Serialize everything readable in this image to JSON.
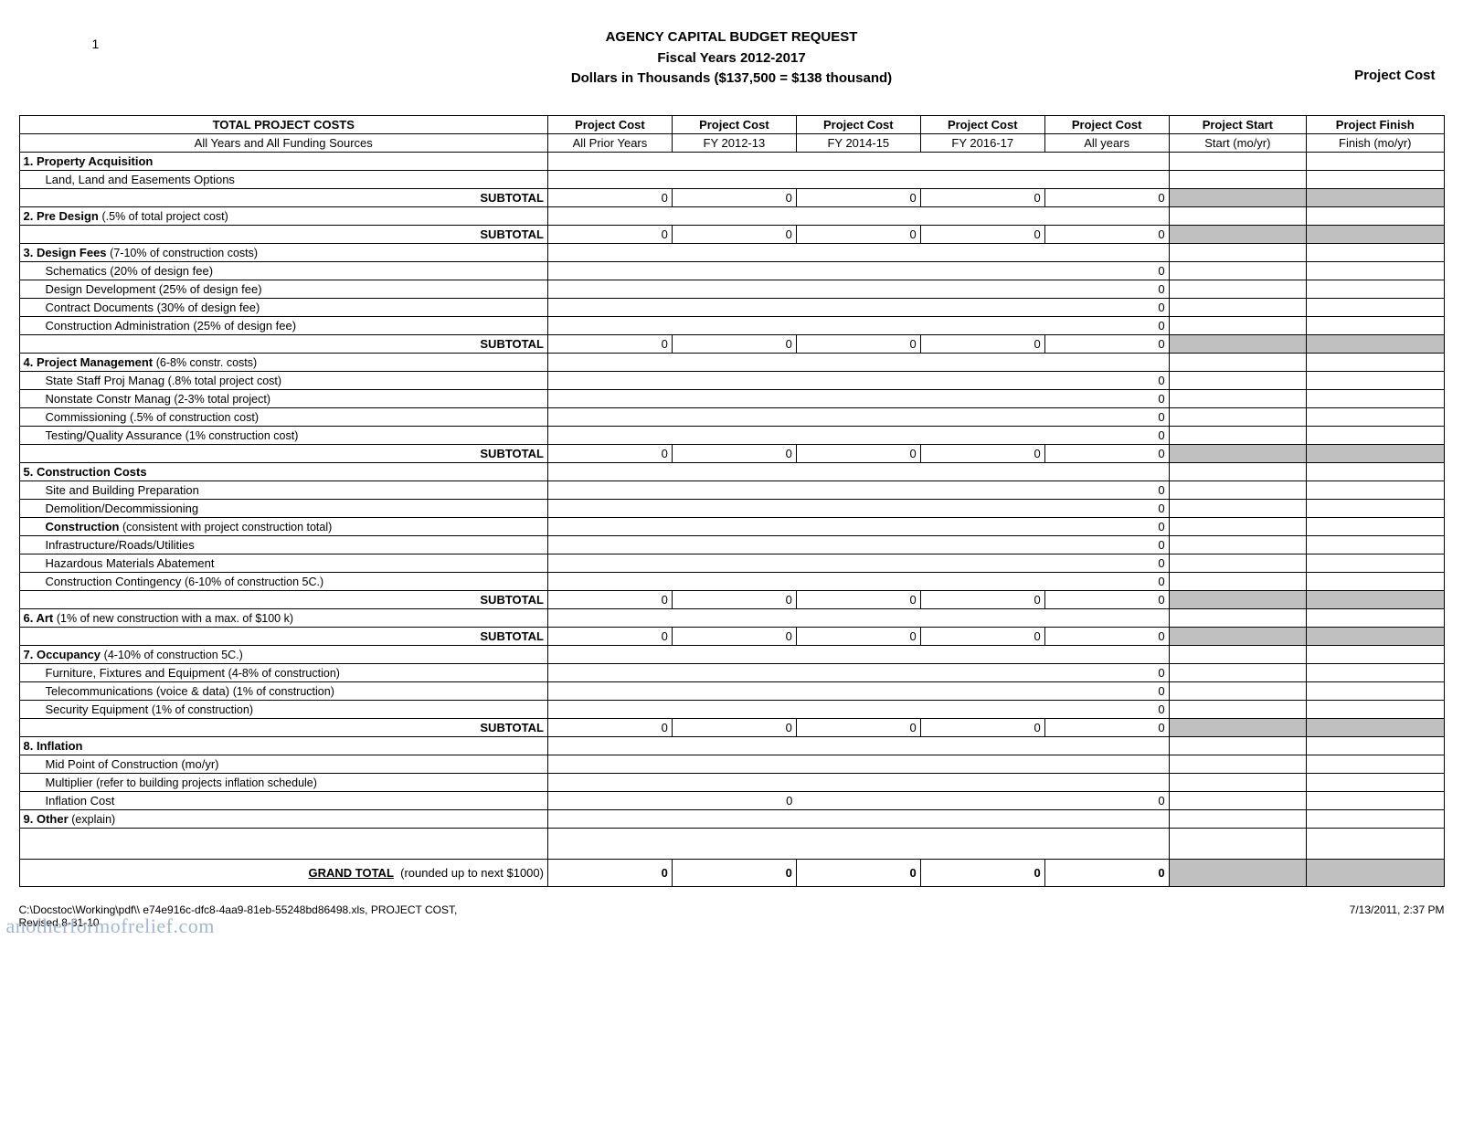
{
  "pageNumber": "1",
  "header": {
    "line1": "AGENCY CAPITAL BUDGET REQUEST",
    "line2": "Fiscal Years 2012-2017",
    "line3": "Dollars in Thousands ($137,500 = $138 thousand)"
  },
  "topRightLabel": "Project Cost",
  "columns": {
    "mainTitle": "TOTAL PROJECT COSTS",
    "mainSub": "All Years and All Funding Sources",
    "c1a": "Project Cost",
    "c1b": "All Prior Years",
    "c2a": "Project Cost",
    "c2b": "FY 2012-13",
    "c3a": "Project Cost",
    "c3b": "FY 2014-15",
    "c4a": "Project Cost",
    "c4b": "FY 2016-17",
    "c5a": "Project Cost",
    "c5b": "All years",
    "c6a": "Project Start",
    "c6b": "Start (mo/yr)",
    "c7a": "Project Finish",
    "c7b": "Finish (mo/yr)"
  },
  "labels": {
    "subtotal": "SUBTOTAL",
    "grandTotal": "GRAND TOTAL",
    "grandNote": "(rounded up to next  $1000)"
  },
  "sections": {
    "s1": {
      "title": "1. Property Acquisition",
      "rows": [
        {
          "label": "Land, Land and Easements Options"
        }
      ],
      "subtotal": {
        "v": [
          "0",
          "0",
          "0",
          "0",
          "0"
        ]
      }
    },
    "s2": {
      "title": "2. Pre Design",
      "note": "(.5% of total project cost)",
      "subtotal": {
        "v": [
          "0",
          "0",
          "0",
          "0",
          "0"
        ]
      }
    },
    "s3": {
      "title": "3. Design Fees",
      "note": "(7-10% of construction costs)",
      "rows": [
        {
          "label": "Schematics (20% of design fee)",
          "all": "0"
        },
        {
          "label": "Design Development (25% of design fee)",
          "all": "0"
        },
        {
          "label": "Contract Documents (30% of design fee)",
          "all": "0"
        },
        {
          "label": "Construction Administration (25% of design fee)",
          "all": "0"
        }
      ],
      "subtotal": {
        "v": [
          "0",
          "0",
          "0",
          "0",
          "0"
        ]
      }
    },
    "s4": {
      "title": "4. Project Management",
      "note": "(6-8% constr. costs)",
      "rows": [
        {
          "label": "State Staff Proj Manag",
          "note": "(.8% total project cost)",
          "all": "0"
        },
        {
          "label": "Nonstate Constr Manag",
          "note": "(2-3% total project)",
          "all": "0"
        },
        {
          "label": "Commissioning",
          "note": "(.5% of construction cost)",
          "all": "0"
        },
        {
          "label": "Testing/Quality Assurance",
          "note": "(1% construction cost)",
          "all": "0"
        }
      ],
      "subtotal": {
        "v": [
          "0",
          "0",
          "0",
          "0",
          "0"
        ]
      }
    },
    "s5": {
      "title": "5. Construction Costs",
      "rows": [
        {
          "label": "Site and Building Preparation",
          "all": "0"
        },
        {
          "label": "Demolition/Decommissioning",
          "all": "0"
        },
        {
          "labelBold": "Construction",
          "note": "(consistent with project construction total)",
          "all": "0"
        },
        {
          "label": "Infrastructure/Roads/Utilities",
          "all": "0"
        },
        {
          "label": "Hazardous Materials Abatement",
          "all": "0"
        },
        {
          "label": "Construction Contingency",
          "note": "(6-10% of construction 5C.)",
          "all": "0"
        }
      ],
      "subtotal": {
        "v": [
          "0",
          "0",
          "0",
          "0",
          "0"
        ]
      }
    },
    "s6": {
      "title": "6. Art",
      "note": "(1% of new construction with a max. of $100 k)",
      "subtotal": {
        "v": [
          "0",
          "0",
          "0",
          "0",
          "0"
        ]
      }
    },
    "s7": {
      "title": "7. Occupancy",
      "note": "(4-10% of construction 5C.)",
      "rows": [
        {
          "label": "Furniture, Fixtures and Equipment",
          "note": "(4-8% of construction)",
          "all": "0"
        },
        {
          "label": "Telecommunications (voice & data)",
          "note": "(1% of construction)",
          "all": "0"
        },
        {
          "label": "Security Equipment",
          "note": "(1% of construction)",
          "all": "0"
        }
      ],
      "subtotal": {
        "v": [
          "0",
          "0",
          "0",
          "0",
          "0"
        ]
      }
    },
    "s8": {
      "title": "8. Inflation",
      "rows": [
        {
          "label": "Mid Point of Construction (mo/yr)"
        },
        {
          "label": "Multiplier",
          "note": "(refer to building projects inflation schedule)"
        },
        {
          "label": "Inflation Cost",
          "v2": "0",
          "all": "0"
        }
      ]
    },
    "s9": {
      "title": "9. Other",
      "note": "(explain)"
    }
  },
  "grandTotal": {
    "v": [
      "0",
      "0",
      "0",
      "0",
      "0"
    ]
  },
  "footer": {
    "path": "C:\\Docstoc\\Working\\pdf\\\\ e74e916c-dfc8-4aa9-81eb-55248bd86498.xls,  PROJECT COST,",
    "revised": "Revised 8-31-10",
    "datetime": "7/13/2011, 2:37 PM"
  },
  "watermark": "anotherformofrelief.com"
}
